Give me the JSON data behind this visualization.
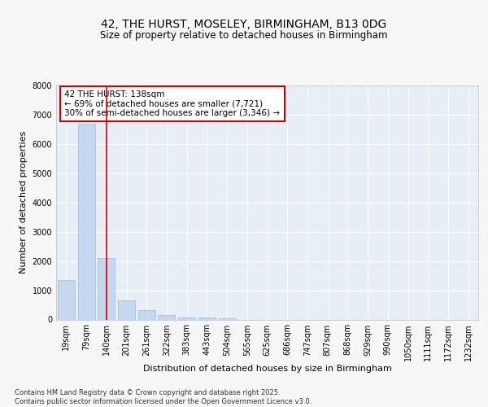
{
  "title_line1": "42, THE HURST, MOSELEY, BIRMINGHAM, B13 0DG",
  "title_line2": "Size of property relative to detached houses in Birmingham",
  "xlabel": "Distribution of detached houses by size in Birmingham",
  "ylabel": "Number of detached properties",
  "categories": [
    "19sqm",
    "79sqm",
    "140sqm",
    "201sqm",
    "261sqm",
    "322sqm",
    "383sqm",
    "443sqm",
    "504sqm",
    "565sqm",
    "625sqm",
    "686sqm",
    "747sqm",
    "807sqm",
    "868sqm",
    "929sqm",
    "990sqm",
    "1050sqm",
    "1111sqm",
    "1172sqm",
    "1232sqm"
  ],
  "values": [
    1350,
    6700,
    2100,
    650,
    320,
    150,
    80,
    80,
    50,
    0,
    0,
    0,
    0,
    0,
    0,
    0,
    0,
    0,
    0,
    0,
    0
  ],
  "bar_color": "#c5d8f0",
  "bar_edge_color": "#9bbcda",
  "vline_x": 2,
  "vline_color": "#cc0000",
  "annotation_text": "42 THE HURST: 138sqm\n← 69% of detached houses are smaller (7,721)\n30% of semi-detached houses are larger (3,346) →",
  "annotation_box_edge_color": "#cc0000",
  "ylim": [
    0,
    8000
  ],
  "yticks": [
    0,
    1000,
    2000,
    3000,
    4000,
    5000,
    6000,
    7000,
    8000
  ],
  "background_color": "#f7f7f7",
  "plot_bg_color": "#e8eef5",
  "grid_color": "#ffffff",
  "footer_text": "Contains HM Land Registry data © Crown copyright and database right 2025.\nContains public sector information licensed under the Open Government Licence v3.0.",
  "title_fontsize": 10,
  "subtitle_fontsize": 8.5,
  "axis_label_fontsize": 8,
  "tick_fontsize": 7,
  "annotation_fontsize": 7.5,
  "footer_fontsize": 6
}
